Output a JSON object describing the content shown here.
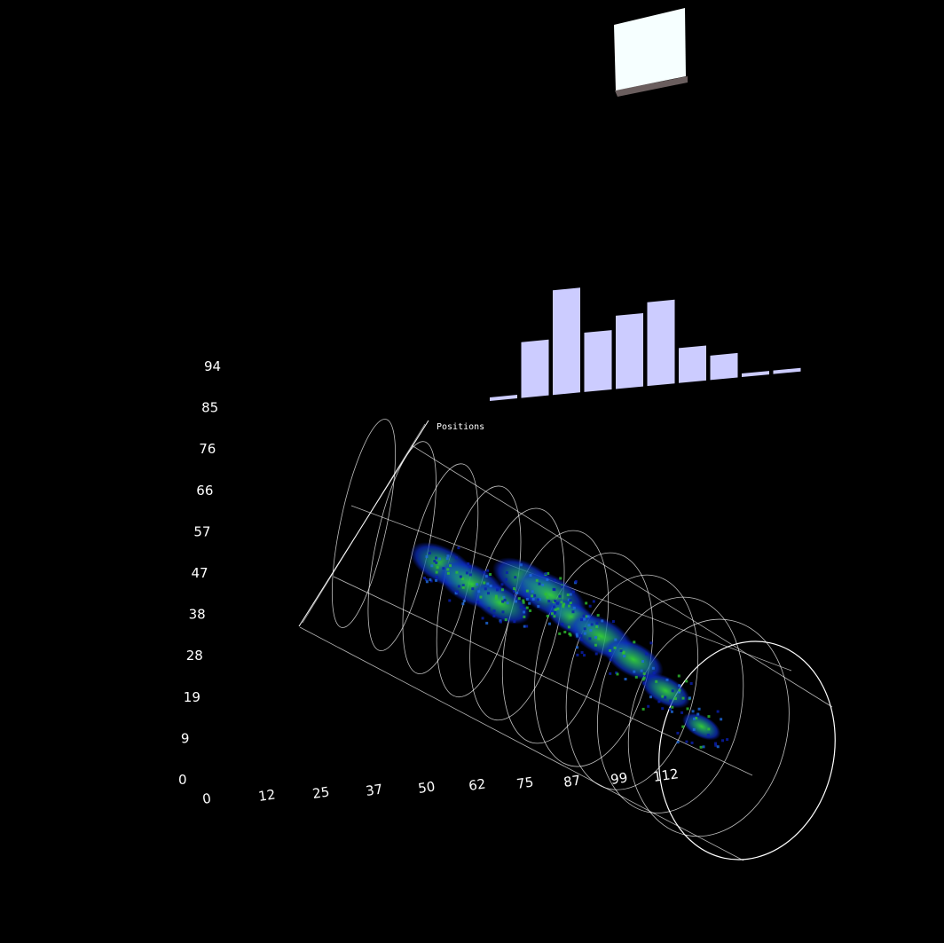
{
  "chart_data": {
    "type": "heatmap",
    "title": "",
    "series_label": "Positions",
    "colors": {
      "background": "#000000",
      "rings": "#ffffff",
      "histogram": "#ccccff",
      "heat_low": "#0a1fb0",
      "heat_mid": "#1f6adf",
      "heat_high": "#2fbf2f",
      "panel": "#f6ffff"
    },
    "x_axis": {
      "ticks": [
        "0",
        "12",
        "25",
        "37",
        "50",
        "62",
        "75",
        "87",
        "99",
        "112"
      ]
    },
    "y_axis": {
      "ticks": [
        "0",
        "9",
        "19",
        "28",
        "38",
        "47",
        "57",
        "66",
        "76",
        "85",
        "94"
      ]
    },
    "histogram": {
      "values": [
        1,
        16,
        30,
        17,
        21,
        24,
        10,
        7,
        1,
        1
      ]
    },
    "density_clusters": [
      {
        "x": 22,
        "y": 54,
        "weight": 0.9
      },
      {
        "x": 30,
        "y": 50,
        "weight": 1.0
      },
      {
        "x": 38,
        "y": 46,
        "weight": 0.8
      },
      {
        "x": 45,
        "y": 52,
        "weight": 0.9
      },
      {
        "x": 52,
        "y": 49,
        "weight": 1.0
      },
      {
        "x": 58,
        "y": 44,
        "weight": 0.7
      },
      {
        "x": 66,
        "y": 40,
        "weight": 0.9
      },
      {
        "x": 75,
        "y": 35,
        "weight": 0.8
      },
      {
        "x": 84,
        "y": 28,
        "weight": 0.6
      },
      {
        "x": 94,
        "y": 20,
        "weight": 0.4
      }
    ]
  }
}
